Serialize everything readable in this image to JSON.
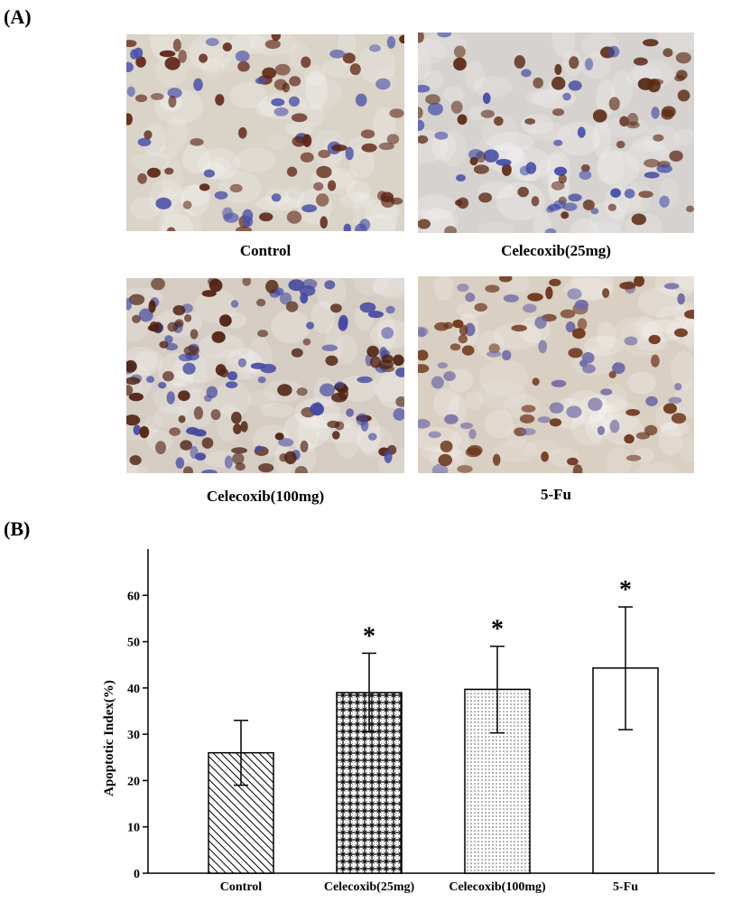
{
  "panel_a": {
    "label": "(A)",
    "images": [
      {
        "caption": "Control",
        "bg": "#d9d3c8",
        "stain": "#5e2414",
        "counter": "#4b52a8"
      },
      {
        "caption": "Celecoxib(25mg)",
        "bg": "#d6d2cf",
        "stain": "#5a2a14",
        "counter": "#3f48a3"
      },
      {
        "caption": "Celecoxib(100mg)",
        "bg": "#d5cdc4",
        "stain": "#4e2010",
        "counter": "#454aa0"
      },
      {
        "caption": "5-Fu",
        "bg": "#d9cfc3",
        "stain": "#6a3318",
        "counter": "#6f69a6"
      }
    ]
  },
  "panel_b": {
    "label": "(B)"
  },
  "chart_data": {
    "type": "bar",
    "categories": [
      "Control",
      "Celecoxib(25mg)",
      "Celecoxib(100mg)",
      "5-Fu"
    ],
    "values": [
      26,
      39,
      39.7,
      44.3
    ],
    "error_low": [
      19,
      30.5,
      30.3,
      31
    ],
    "error_high": [
      33,
      47.5,
      49,
      57.5
    ],
    "significance": [
      "",
      "*",
      "*",
      "*"
    ],
    "fill_patterns": [
      "diagonal-hatch",
      "star-grid",
      "dots",
      "none"
    ],
    "title": "",
    "xlabel": "",
    "ylabel": "Apoptotic Index(%)",
    "ylim": [
      0,
      70
    ],
    "yticks": [
      0,
      10,
      20,
      30,
      40,
      50,
      60
    ],
    "grid": false,
    "legend": "none"
  }
}
